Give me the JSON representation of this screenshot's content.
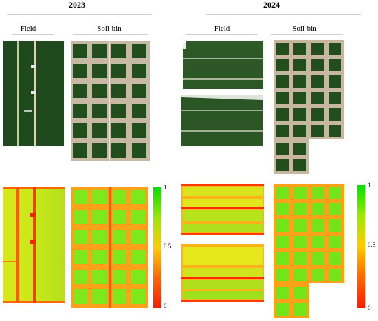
{
  "years": [
    "2023",
    "2024"
  ],
  "columns": {
    "y2023": [
      "Field",
      "Soil-bin"
    ],
    "y2024": [
      "Field",
      "Soil-bin"
    ]
  },
  "colorbar": {
    "ticks": [
      "1",
      "0.5",
      "0"
    ],
    "colors": {
      "high": "#00e000",
      "mid": "#ffcc00",
      "low": "#ff1a00"
    }
  }
}
